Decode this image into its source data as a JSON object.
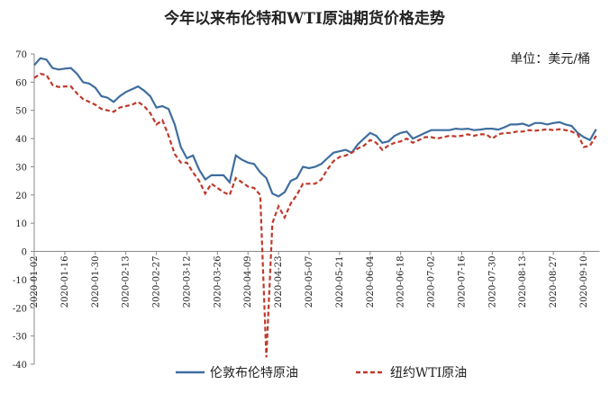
{
  "chart_data": {
    "type": "line",
    "title": "今年以来布伦特和WTI原油期货价格走势",
    "annotation": "单位：美元/桶",
    "categories": [
      "2020-01-02",
      null,
      null,
      null,
      null,
      "2020-01-16",
      null,
      null,
      null,
      null,
      "2020-01-30",
      null,
      null,
      null,
      null,
      "2020-02-13",
      null,
      null,
      null,
      null,
      "2020-02-27",
      null,
      null,
      null,
      null,
      "2020-03-12",
      null,
      null,
      null,
      null,
      "2020-03-26",
      null,
      null,
      null,
      null,
      "2020-04-09",
      null,
      null,
      null,
      null,
      "2020-04-23",
      null,
      null,
      null,
      null,
      "2020-05-07",
      null,
      null,
      null,
      null,
      "2020-05-21",
      null,
      null,
      null,
      null,
      "2020-06-04",
      null,
      null,
      null,
      null,
      "2020-06-18",
      null,
      null,
      null,
      null,
      "2020-07-02",
      null,
      null,
      null,
      null,
      "2020-07-16",
      null,
      null,
      null,
      null,
      "2020-07-30",
      null,
      null,
      null,
      null,
      "2020-08-13",
      null,
      null,
      null,
      null,
      "2020-08-27",
      null,
      null,
      null,
      null,
      "2020-09-10",
      null,
      null
    ],
    "series": [
      {
        "name": "伦敦布伦特原油",
        "color": "#3f6e9e",
        "style": "solid",
        "values": [
          66,
          68.5,
          68,
          65,
          64.5,
          64.8,
          65,
          63,
          60,
          59.5,
          58,
          55,
          54.5,
          53,
          55,
          56.5,
          57.5,
          58.5,
          57,
          55,
          51,
          51.5,
          50.5,
          45,
          37,
          33,
          34,
          29,
          25.5,
          27,
          27,
          27,
          24.5,
          34,
          32.5,
          31.5,
          31,
          28,
          26,
          20.5,
          19.5,
          21,
          25,
          26,
          30,
          29.5,
          30,
          31,
          33,
          35,
          35.5,
          36,
          35,
          38,
          40,
          42,
          41,
          38.5,
          39,
          41,
          42,
          42.5,
          40,
          41,
          42,
          43,
          43,
          43,
          43,
          43.5,
          43.3,
          43.5,
          43,
          43.2,
          43.5,
          43.5,
          43.2,
          44,
          45,
          45,
          45.3,
          44.5,
          45.5,
          45.5,
          45,
          45.5,
          45.8,
          45,
          44.5,
          42,
          40.5,
          39.5,
          43.3
        ]
      },
      {
        "name": "纽约WTI原油",
        "color": "#c0392b",
        "style": "dashed",
        "values": [
          61.5,
          63,
          62.5,
          59,
          58.3,
          58.5,
          58.5,
          56,
          54,
          53,
          52,
          50.5,
          50,
          49.5,
          51,
          51.5,
          52,
          53,
          51.5,
          49,
          45,
          46.5,
          41,
          34.5,
          31.5,
          31.5,
          28,
          25,
          20.5,
          24,
          22.5,
          21,
          20,
          26,
          24.5,
          23,
          22.5,
          20,
          -37.6,
          10,
          16,
          12,
          17,
          20,
          24,
          24,
          24,
          25.5,
          29,
          32,
          33.5,
          34,
          35,
          36.5,
          37.5,
          39.5,
          38.5,
          36,
          37.5,
          38.5,
          39,
          40,
          38.5,
          39.5,
          40.5,
          40.5,
          40,
          40.5,
          41,
          40.8,
          41,
          41.5,
          41,
          41.5,
          41.5,
          40,
          41.5,
          42,
          42,
          42.5,
          42.5,
          43,
          42.8,
          43,
          43.3,
          43,
          43.3,
          43,
          42.5,
          41.5,
          37,
          37.5,
          41
        ]
      }
    ],
    "ylim": [
      -40,
      70
    ],
    "yticks": [
      -40,
      -30,
      -20,
      -10,
      0,
      10,
      20,
      30,
      40,
      50,
      60,
      70
    ],
    "grid": false,
    "legend": "bottom"
  }
}
